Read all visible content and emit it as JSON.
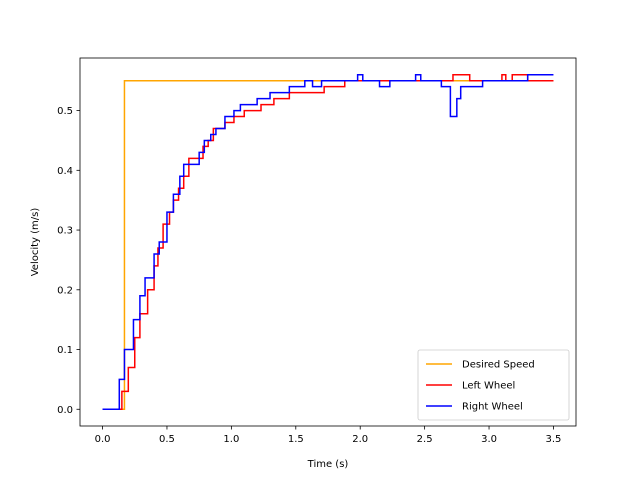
{
  "chart_data": {
    "type": "line",
    "step": "post",
    "xlabel": "Time (s)",
    "ylabel": "Velocity (m/s)",
    "xlim": [
      -0.175,
      3.675
    ],
    "ylim": [
      -0.028,
      0.588
    ],
    "xticks": [
      0.0,
      0.5,
      1.0,
      1.5,
      2.0,
      2.5,
      3.0,
      3.5
    ],
    "xtick_labels": [
      "0.0",
      "0.5",
      "1.0",
      "1.5",
      "2.0",
      "2.5",
      "3.0",
      "3.5"
    ],
    "yticks": [
      0.0,
      0.1,
      0.2,
      0.3,
      0.4,
      0.5
    ],
    "ytick_labels": [
      "0.0",
      "0.1",
      "0.2",
      "0.3",
      "0.4",
      "0.5"
    ],
    "grid": false,
    "legend_position": "bottom-right",
    "series": [
      {
        "name": "Desired Speed",
        "color": "#ffa500",
        "x": [
          0.0,
          0.17,
          0.17,
          3.5
        ],
        "y": [
          0.0,
          0.0,
          0.55,
          0.55
        ]
      },
      {
        "name": "Left Wheel",
        "color": "#ff0000",
        "x": [
          0.0,
          0.15,
          0.2,
          0.25,
          0.29,
          0.35,
          0.4,
          0.43,
          0.47,
          0.52,
          0.55,
          0.59,
          0.63,
          0.67,
          0.72,
          0.78,
          0.82,
          0.86,
          0.95,
          1.02,
          1.1,
          1.23,
          1.33,
          1.45,
          1.63,
          1.72,
          1.88,
          2.0,
          2.2,
          2.38,
          2.58,
          2.72,
          2.78,
          2.85,
          3.1,
          3.13,
          3.18,
          3.3,
          3.5
        ],
        "y": [
          0.0,
          0.03,
          0.07,
          0.12,
          0.16,
          0.2,
          0.24,
          0.27,
          0.31,
          0.33,
          0.35,
          0.37,
          0.39,
          0.42,
          0.42,
          0.44,
          0.45,
          0.47,
          0.48,
          0.49,
          0.5,
          0.51,
          0.52,
          0.53,
          0.53,
          0.54,
          0.55,
          0.55,
          0.55,
          0.55,
          0.55,
          0.56,
          0.56,
          0.55,
          0.56,
          0.55,
          0.56,
          0.55,
          0.55
        ]
      },
      {
        "name": "Right Wheel",
        "color": "#0000ff",
        "x": [
          0.0,
          0.13,
          0.17,
          0.24,
          0.29,
          0.33,
          0.4,
          0.44,
          0.5,
          0.55,
          0.6,
          0.63,
          0.67,
          0.75,
          0.79,
          0.84,
          0.88,
          0.95,
          1.02,
          1.07,
          1.12,
          1.2,
          1.3,
          1.45,
          1.57,
          1.63,
          1.7,
          1.8,
          1.98,
          2.02,
          2.15,
          2.23,
          2.43,
          2.47,
          2.63,
          2.7,
          2.75,
          2.78,
          2.82,
          2.95,
          3.05,
          3.15,
          3.3,
          3.5
        ],
        "y": [
          0.0,
          0.05,
          0.1,
          0.15,
          0.19,
          0.22,
          0.26,
          0.28,
          0.33,
          0.36,
          0.39,
          0.41,
          0.41,
          0.43,
          0.45,
          0.46,
          0.47,
          0.49,
          0.5,
          0.51,
          0.51,
          0.52,
          0.53,
          0.54,
          0.55,
          0.54,
          0.55,
          0.55,
          0.56,
          0.55,
          0.54,
          0.55,
          0.56,
          0.55,
          0.54,
          0.49,
          0.52,
          0.54,
          0.54,
          0.55,
          0.55,
          0.55,
          0.56,
          0.56
        ]
      }
    ]
  }
}
